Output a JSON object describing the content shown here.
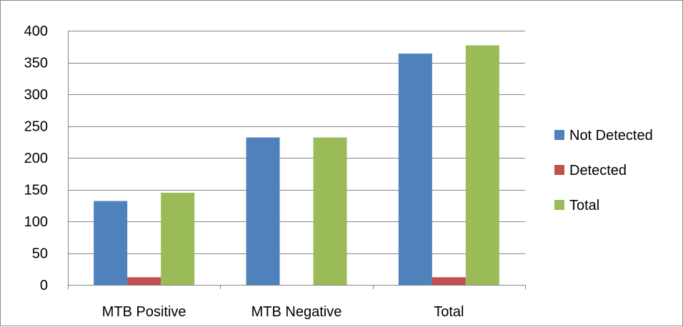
{
  "chart_data": {
    "type": "bar",
    "categories": [
      "MTB Positive",
      "MTB Negative",
      "Total"
    ],
    "series": [
      {
        "name": "Not Detected",
        "values": [
          132,
          232,
          364
        ],
        "color": "#4f81bd"
      },
      {
        "name": "Detected",
        "values": [
          12,
          0,
          12
        ],
        "color": "#c0504d"
      },
      {
        "name": "Total",
        "values": [
          145,
          232,
          377
        ],
        "color": "#9bbb59"
      }
    ],
    "ylim": [
      0,
      400
    ],
    "yticks": [
      0,
      50,
      100,
      150,
      200,
      250,
      300,
      350,
      400
    ],
    "grid": true,
    "legend_position": "right"
  }
}
